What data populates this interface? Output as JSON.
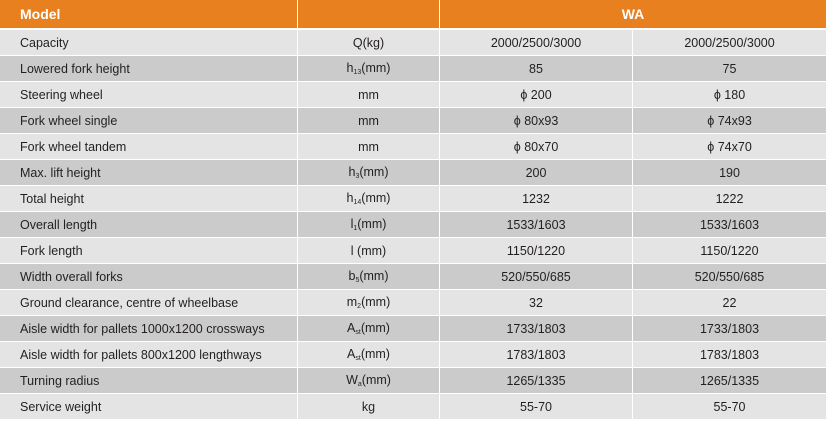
{
  "table": {
    "header": [
      "Model",
      "WA"
    ],
    "rows": [
      [
        "Capacity",
        "Q(kg)",
        "2000/2500/3000",
        "2000/2500/3000"
      ],
      [
        "Lowered fork height",
        {
          "main": "h",
          "sub": "13",
          "tail": "(mm)"
        },
        "85",
        "75"
      ],
      [
        "Steering wheel",
        "mm",
        "ϕ 200",
        "ϕ 180"
      ],
      [
        "Fork wheel single",
        "mm",
        "ϕ 80x93",
        "ϕ 74x93"
      ],
      [
        "Fork wheel tandem",
        "mm",
        "ϕ 80x70",
        "ϕ 74x70"
      ],
      [
        "Max. lift height",
        {
          "main": "h",
          "sub": "3",
          "tail": "(mm)"
        },
        "200",
        "190"
      ],
      [
        "Total height",
        {
          "main": "h",
          "sub": "14",
          "tail": "(mm)"
        },
        "1232",
        "1222"
      ],
      [
        "Overall length",
        {
          "main": "l",
          "sub": "1",
          "tail": "(mm)"
        },
        "1533/1603",
        "1533/1603"
      ],
      [
        "Fork length",
        "l (mm)",
        "1150/1220",
        "1150/1220"
      ],
      [
        "Width overall forks",
        {
          "main": "b",
          "sub": "5",
          "tail": "(mm)"
        },
        "520/550/685",
        "520/550/685"
      ],
      [
        "Ground clearance, centre of wheelbase",
        {
          "main": "m",
          "sub": "2",
          "tail": "(mm)"
        },
        "32",
        "22"
      ],
      [
        "Aisle width for pallets 1000x1200 crossways",
        {
          "main": "A",
          "sub": "st",
          "tail": "(mm)"
        },
        "1733/1803",
        "1733/1803"
      ],
      [
        "Aisle width for pallets 800x1200 lengthways",
        {
          "main": "A",
          "sub": "st",
          "tail": "(mm)"
        },
        "1783/1803",
        "1783/1803"
      ],
      [
        "Turning radius",
        {
          "main": "W",
          "sub": "a",
          "tail": "(mm)"
        },
        "1265/1335",
        "1265/1335"
      ],
      [
        "Service weight",
        "kg",
        "55-70",
        "55-70"
      ]
    ]
  }
}
